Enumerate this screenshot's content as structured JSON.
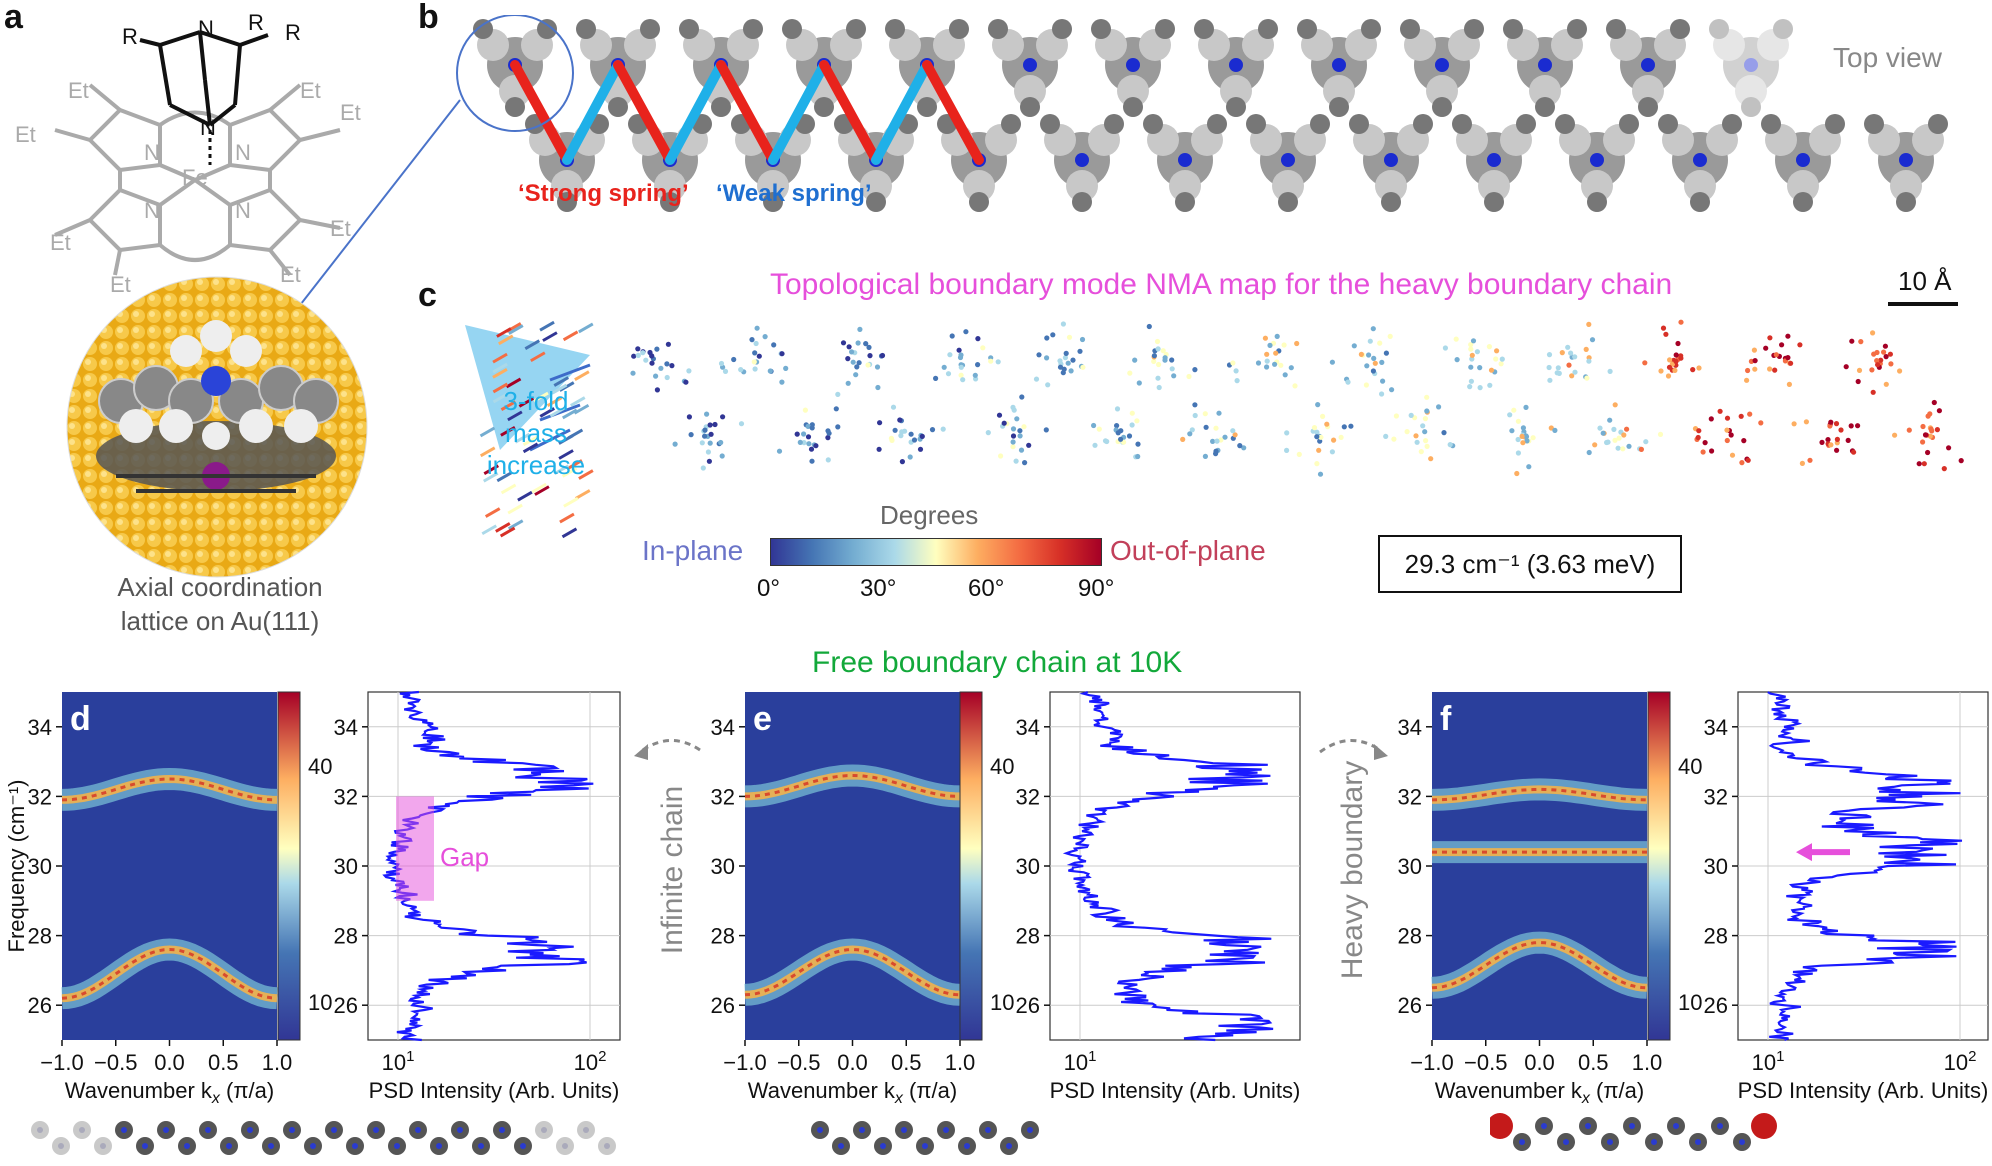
{
  "panel_labels": {
    "a": "a",
    "b": "b",
    "c": "c",
    "d": "d",
    "e": "e",
    "f": "f"
  },
  "panel_a": {
    "chem_labels": {
      "R": "R",
      "N": "N",
      "Fe": "Fe",
      "Et": "Et"
    },
    "caption_line1": "Axial coordination",
    "caption_line2": "lattice on Au(111)"
  },
  "panel_b": {
    "top_view": "Top view",
    "strong_spring": "‘Strong spring’",
    "weak_spring": "‘Weak spring’",
    "scale_bar": "10 Å"
  },
  "panel_c": {
    "title": "Topological boundary mode NMA map for the heavy boundary chain",
    "mass_line1": "3-fold",
    "mass_line2": "mass",
    "mass_line3": "increase",
    "colorbar_title": "Degrees",
    "in_plane": "In-plane",
    "out_of_plane": "Out-of-plane",
    "ticks": [
      "0°",
      "30°",
      "60°",
      "90°"
    ],
    "freq_box": "29.3 cm⁻¹ (3.63 meV)"
  },
  "header": {
    "free_boundary": "Free boundary chain at 10K"
  },
  "side_labels": {
    "infinite": "Infinite chain",
    "heavy": "Heavy boundary"
  },
  "gap_label": "Gap",
  "axes": {
    "y_ticks": [
      "34",
      "32",
      "30",
      "28",
      "26"
    ],
    "x_ticks": [
      "−1.0",
      "−0.5",
      "0.0",
      "0.5",
      "1.0"
    ],
    "ylabel": "Frequency (cm⁻¹)",
    "xlabel": "Wavenumber k",
    "xlabel_sub": "x",
    "xlabel_unit": " (π/a)",
    "psd_label": "PSD Intensity (Arb. Units)",
    "psd_ticks_d": [
      "10",
      "10"
    ],
    "psd_ticks_e": [
      "10"
    ],
    "psd_ticks_f": [
      "10",
      "10"
    ],
    "psd_exp_1": "1",
    "psd_exp_2": "2",
    "cbar_d": [
      "40",
      "10"
    ],
    "cbar_e": [
      "40",
      "10"
    ],
    "cbar_f": [
      "40",
      "10"
    ]
  },
  "chart_data": [
    {
      "type": "heatmap",
      "panel": "d",
      "title": "Free boundary chain at 10K",
      "xlabel": "Wavenumber kx (π/a)",
      "ylabel": "Frequency (cm⁻¹)",
      "xlim": [
        -1.0,
        1.0
      ],
      "ylim": [
        25,
        35
      ],
      "bands": [
        {
          "name": "upper",
          "center_k0": 32.5,
          "edge_k1": 31.9
        },
        {
          "name": "lower",
          "center_k0": 27.6,
          "edge_k1": 26.2
        }
      ],
      "colorbar_ticks": [
        10,
        40
      ]
    },
    {
      "type": "line",
      "panel": "d",
      "xlabel": "PSD Intensity (Arb. Units)",
      "ylabel": "Frequency (cm⁻¹)",
      "xscale": "log",
      "peaks_cm": [
        32.5,
        27.5
      ],
      "gap_cm": [
        29,
        32
      ]
    },
    {
      "type": "heatmap",
      "panel": "e",
      "xlim": [
        -1.0,
        1.0
      ],
      "ylim": [
        25,
        35
      ],
      "bands": [
        {
          "name": "upper",
          "center_k0": 32.6,
          "edge_k1": 32.0
        },
        {
          "name": "lower",
          "center_k0": 27.6,
          "edge_k1": 26.3
        }
      ],
      "colorbar_ticks": [
        10,
        40
      ]
    },
    {
      "type": "line",
      "panel": "e",
      "xscale": "log",
      "peaks_cm": [
        32.6,
        27.6,
        25.4
      ]
    },
    {
      "type": "heatmap",
      "panel": "f",
      "xlim": [
        -1.0,
        1.0
      ],
      "ylim": [
        25,
        35
      ],
      "bands": [
        {
          "name": "upper",
          "center_k0": 32.2,
          "edge_k1": 31.9
        },
        {
          "name": "boundary",
          "center_k0": 30.4,
          "edge_k1": 30.4
        },
        {
          "name": "lower",
          "center_k0": 27.8,
          "edge_k1": 26.5
        }
      ],
      "colorbar_ticks": [
        10,
        40
      ]
    },
    {
      "type": "line",
      "panel": "f",
      "xscale": "log",
      "peaks_cm": [
        32.2,
        30.4,
        27.6
      ],
      "arrow_at_cm": 30.4
    }
  ],
  "colors": {
    "strong": "#e8231c",
    "weak": "#1fb0e8",
    "pink": "#e64fdb",
    "green": "#12a83a",
    "psd": "#1a1aff",
    "gold": "#e7b52b"
  }
}
